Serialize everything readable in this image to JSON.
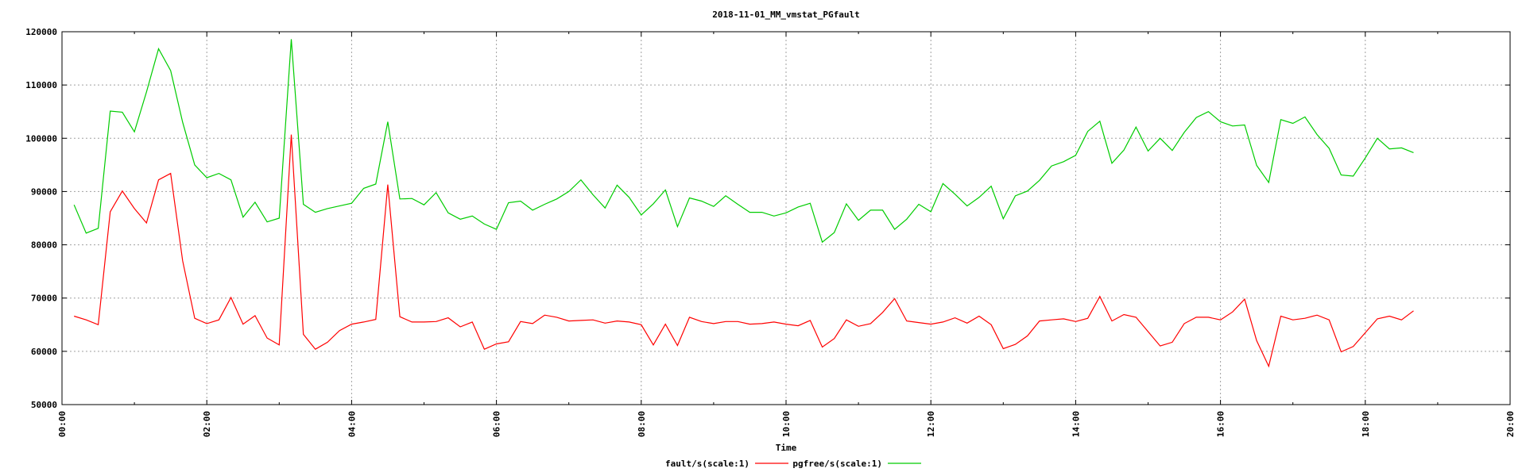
{
  "chart_data": {
    "type": "line",
    "title": "2018-11-01_MM_vmstat_PGfault",
    "xlabel": "Time",
    "ylabel": "",
    "ylim": [
      50000,
      120000
    ],
    "yticks": [
      50000,
      60000,
      70000,
      80000,
      90000,
      100000,
      110000,
      120000
    ],
    "xlim": [
      "00:00",
      "20:00"
    ],
    "xticks": [
      "00:00",
      "02:00",
      "04:00",
      "06:00",
      "08:00",
      "10:00",
      "12:00",
      "14:00",
      "16:00",
      "18:00",
      "20:00"
    ],
    "grid": true,
    "legend_position": "bottom-center",
    "x": [
      "00:10",
      "00:20",
      "00:30",
      "00:40",
      "00:50",
      "01:00",
      "01:10",
      "01:20",
      "01:30",
      "01:40",
      "01:50",
      "02:00",
      "02:10",
      "02:20",
      "02:30",
      "02:40",
      "02:50",
      "03:00",
      "03:10",
      "03:20",
      "03:30",
      "03:40",
      "03:50",
      "04:00",
      "04:10",
      "04:20",
      "04:30",
      "04:40",
      "04:50",
      "05:00",
      "05:10",
      "05:20",
      "05:30",
      "05:40",
      "05:50",
      "06:00",
      "06:10",
      "06:20",
      "06:30",
      "06:40",
      "06:50",
      "07:00",
      "07:10",
      "07:20",
      "07:30",
      "07:40",
      "07:50",
      "08:00",
      "08:10",
      "08:20",
      "08:30",
      "08:40",
      "08:50",
      "09:00",
      "09:10",
      "09:20",
      "09:30",
      "09:40",
      "09:50",
      "10:00",
      "10:10",
      "10:20",
      "10:30",
      "10:40",
      "10:50",
      "11:00",
      "11:10",
      "11:20",
      "11:30",
      "11:40",
      "11:50",
      "12:00",
      "12:10",
      "12:20",
      "12:30",
      "12:40",
      "12:50",
      "13:00",
      "13:10",
      "13:20",
      "13:30",
      "13:40",
      "13:50",
      "14:00",
      "14:10",
      "14:20",
      "14:30",
      "14:40",
      "14:50",
      "15:00",
      "15:10",
      "15:20",
      "15:30",
      "15:40",
      "15:50",
      "16:00",
      "16:10",
      "16:20",
      "16:30",
      "16:40",
      "16:50",
      "17:00",
      "17:10",
      "17:20",
      "17:30",
      "17:40",
      "17:50",
      "18:00",
      "18:10",
      "18:20",
      "18:30",
      "18:40"
    ],
    "series": [
      {
        "name": "fault/s(scale:1)",
        "color": "#ff0000",
        "values": [
          66600,
          65900,
          65000,
          86200,
          90100,
          86800,
          84100,
          92200,
          93400,
          77000,
          66200,
          65200,
          65900,
          70100,
          65100,
          66700,
          62500,
          61200,
          100700,
          63200,
          60400,
          61700,
          63900,
          65100,
          65500,
          66000,
          91300,
          66500,
          65500,
          65500,
          65600,
          66300,
          64600,
          65500,
          60400,
          61400,
          61800,
          65600,
          65200,
          66800,
          66400,
          65700,
          65800,
          65900,
          65300,
          65700,
          65500,
          65000,
          61200,
          65100,
          61100,
          66400,
          65600,
          65200,
          65600,
          65600,
          65100,
          65200,
          65500,
          65100,
          64800,
          65800,
          60800,
          62400,
          65900,
          64700,
          65200,
          67300,
          69900,
          65700,
          65400,
          65100,
          65500,
          66300,
          65300,
          66600,
          65000,
          60500,
          61300,
          62900,
          65700,
          65900,
          66100,
          65600,
          66200,
          70300,
          65700,
          66900,
          66400,
          63700,
          61000,
          61700,
          65200,
          66400,
          66400,
          65900,
          67400,
          69800,
          62000,
          57200,
          66600,
          65900,
          66200,
          66800,
          65900,
          59900,
          60900,
          63500,
          66100,
          66600,
          65900,
          67600
        ]
      },
      {
        "name": "pgfree/s(scale:1)",
        "color": "#00cc00",
        "values": [
          87500,
          82200,
          83100,
          105100,
          104900,
          101200,
          108700,
          116800,
          112700,
          103000,
          95000,
          92600,
          93400,
          92200,
          85200,
          88000,
          84300,
          85000,
          118600,
          87600,
          86100,
          86800,
          87300,
          87800,
          90600,
          91400,
          103100,
          88600,
          88700,
          87500,
          89800,
          86000,
          84800,
          85400,
          83900,
          82900,
          87900,
          88200,
          86500,
          87600,
          88600,
          90000,
          92200,
          89400,
          86900,
          91200,
          88900,
          85600,
          87700,
          90300,
          83400,
          88800,
          88200,
          87200,
          89200,
          87600,
          86100,
          86100,
          85400,
          86000,
          87100,
          87800,
          80500,
          82300,
          87700,
          84600,
          86500,
          86500,
          82900,
          84800,
          87600,
          86200,
          91500,
          89500,
          87300,
          88900,
          91000,
          84900,
          89200,
          90100,
          92100,
          94800,
          95600,
          96800,
          101300,
          103200,
          95300,
          97800,
          102100,
          97600,
          100000,
          97700,
          101100,
          103900,
          105000,
          103100,
          102300,
          102500,
          94900,
          91700,
          103500,
          102800,
          104000,
          100700,
          98100,
          93100,
          92900,
          96300,
          100000,
          98000,
          98200,
          97300
        ]
      }
    ]
  }
}
